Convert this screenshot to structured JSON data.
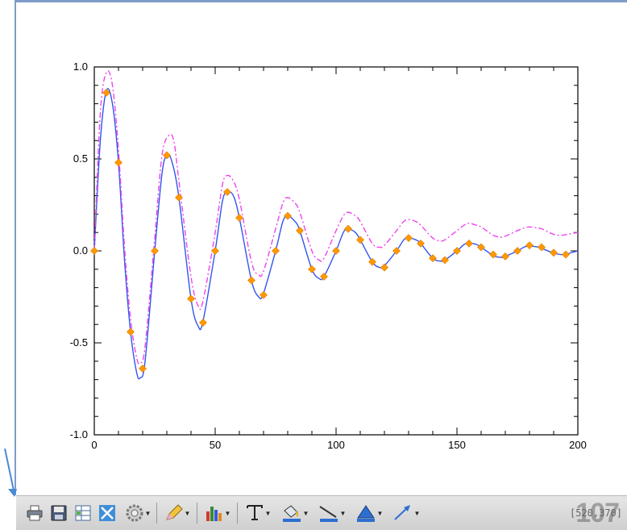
{
  "toolbar": {
    "coords_text": "[520,370]",
    "page_number": "107",
    "buttons": [
      {
        "id": "print",
        "icon": "printer-icon"
      },
      {
        "id": "save",
        "icon": "floppy-disk-icon"
      },
      {
        "id": "data-table",
        "icon": "spreadsheet-icon"
      },
      {
        "id": "fit",
        "icon": "expand-arrows-icon"
      },
      {
        "id": "settings",
        "icon": "gear-icon"
      },
      {
        "id": "edit",
        "icon": "pencil-icon"
      },
      {
        "id": "chart-type",
        "icon": "bar-chart-icon"
      },
      {
        "id": "text",
        "icon": "text-tool-icon"
      },
      {
        "id": "fill",
        "icon": "paint-bucket-icon"
      },
      {
        "id": "line",
        "icon": "line-tool-icon"
      },
      {
        "id": "marker",
        "icon": "triangle-marker-icon"
      },
      {
        "id": "arrow",
        "icon": "arrow-tool-icon"
      }
    ]
  },
  "colors": {
    "blue_line": "#3355ee",
    "magenta_line": "#ee44ee",
    "orange_marker": "#ff9900",
    "window_border": "#7f9cc9",
    "annotation_arrow": "#4a8ad6"
  },
  "chart_data": {
    "type": "line",
    "xlim": [
      0,
      200
    ],
    "ylim": [
      -1.0,
      1.0
    ],
    "x_ticks": [
      "0",
      "50",
      "100",
      "150",
      "200"
    ],
    "y_ticks": [
      "1.0",
      "0.5",
      "0.0",
      "-0.5",
      "-1.0"
    ],
    "title": "",
    "xlabel": "",
    "ylabel": "",
    "grid": false,
    "legend": false,
    "series": [
      {
        "style": "solid",
        "color": "#3355ee",
        "points": [
          [
            0,
            0.0
          ],
          [
            2.5,
            0.6
          ],
          [
            5,
            0.87
          ],
          [
            7.5,
            0.8
          ],
          [
            10,
            0.48
          ],
          [
            12.5,
            -0.05
          ],
          [
            15,
            -0.44
          ],
          [
            17.5,
            -0.66
          ],
          [
            19,
            -0.69
          ],
          [
            21,
            -0.6
          ],
          [
            25,
            0.0
          ],
          [
            28,
            0.42
          ],
          [
            30,
            0.52
          ],
          [
            32,
            0.49
          ],
          [
            35,
            0.29
          ],
          [
            40,
            -0.26
          ],
          [
            43,
            -0.41
          ],
          [
            45,
            -0.38
          ],
          [
            50,
            0.0
          ],
          [
            53,
            0.27
          ],
          [
            55,
            0.32
          ],
          [
            57.5,
            0.3
          ],
          [
            60,
            0.18
          ],
          [
            65,
            -0.16
          ],
          [
            68,
            -0.25
          ],
          [
            70,
            -0.23
          ],
          [
            75,
            0.0
          ],
          [
            78,
            0.16
          ],
          [
            80,
            0.19
          ],
          [
            83,
            0.16
          ],
          [
            85,
            0.11
          ],
          [
            90,
            -0.1
          ],
          [
            93,
            -0.15
          ],
          [
            95,
            -0.14
          ],
          [
            100,
            0.0
          ],
          [
            103,
            0.1
          ],
          [
            105,
            0.12
          ],
          [
            108,
            0.1
          ],
          [
            110,
            0.06
          ],
          [
            115,
            -0.06
          ],
          [
            118,
            -0.09
          ],
          [
            120,
            -0.08
          ],
          [
            125,
            0.0
          ],
          [
            128,
            0.06
          ],
          [
            130,
            0.07
          ],
          [
            133,
            0.06
          ],
          [
            135,
            0.04
          ],
          [
            140,
            -0.04
          ],
          [
            143,
            -0.055
          ],
          [
            145,
            -0.05
          ],
          [
            150,
            0.0
          ],
          [
            153,
            0.035
          ],
          [
            155,
            0.043
          ],
          [
            158,
            0.035
          ],
          [
            160,
            0.02
          ],
          [
            165,
            -0.025
          ],
          [
            168,
            -0.035
          ],
          [
            170,
            -0.03
          ],
          [
            175,
            0.0
          ],
          [
            178,
            0.022
          ],
          [
            180,
            0.026
          ],
          [
            183,
            0.022
          ],
          [
            185,
            0.014
          ],
          [
            190,
            -0.012
          ],
          [
            193,
            -0.02
          ],
          [
            195,
            -0.018
          ],
          [
            200,
            0.0
          ]
        ]
      },
      {
        "style": "dash-dot",
        "color": "#ee44ee",
        "points": [
          [
            0,
            0.0
          ],
          [
            2.5,
            0.75
          ],
          [
            5,
            0.97
          ],
          [
            7.5,
            0.9
          ],
          [
            10,
            0.55
          ],
          [
            12.5,
            0.02
          ],
          [
            15,
            -0.37
          ],
          [
            17.5,
            -0.58
          ],
          [
            19,
            -0.61
          ],
          [
            21,
            -0.52
          ],
          [
            25,
            0.07
          ],
          [
            28,
            0.52
          ],
          [
            31,
            0.63
          ],
          [
            33,
            0.59
          ],
          [
            35,
            0.38
          ],
          [
            40,
            -0.14
          ],
          [
            43,
            -0.3
          ],
          [
            45,
            -0.27
          ],
          [
            50,
            0.1
          ],
          [
            53,
            0.36
          ],
          [
            55,
            0.41
          ],
          [
            57.5,
            0.38
          ],
          [
            60,
            0.28
          ],
          [
            65,
            -0.06
          ],
          [
            68,
            -0.13
          ],
          [
            70,
            -0.11
          ],
          [
            75,
            0.12
          ],
          [
            78,
            0.26
          ],
          [
            80,
            0.29
          ],
          [
            83,
            0.26
          ],
          [
            85,
            0.21
          ],
          [
            90,
            0.0
          ],
          [
            93,
            -0.05
          ],
          [
            95,
            -0.04
          ],
          [
            100,
            0.11
          ],
          [
            103,
            0.19
          ],
          [
            105,
            0.21
          ],
          [
            108,
            0.19
          ],
          [
            110,
            0.16
          ],
          [
            115,
            0.04
          ],
          [
            118,
            0.02
          ],
          [
            120,
            0.03
          ],
          [
            125,
            0.11
          ],
          [
            128,
            0.16
          ],
          [
            130,
            0.17
          ],
          [
            133,
            0.16
          ],
          [
            135,
            0.14
          ],
          [
            140,
            0.07
          ],
          [
            143,
            0.055
          ],
          [
            145,
            0.06
          ],
          [
            150,
            0.11
          ],
          [
            153,
            0.14
          ],
          [
            155,
            0.15
          ],
          [
            158,
            0.14
          ],
          [
            160,
            0.13
          ],
          [
            165,
            0.085
          ],
          [
            168,
            0.075
          ],
          [
            170,
            0.08
          ],
          [
            175,
            0.11
          ],
          [
            178,
            0.125
          ],
          [
            180,
            0.13
          ],
          [
            183,
            0.125
          ],
          [
            185,
            0.12
          ],
          [
            190,
            0.09
          ],
          [
            193,
            0.085
          ],
          [
            195,
            0.088
          ],
          [
            200,
            0.1
          ]
        ]
      },
      {
        "style": "markers",
        "marker": "diamond",
        "color": "#ff9900",
        "points": [
          [
            0,
            0.0
          ],
          [
            5,
            0.86
          ],
          [
            10,
            0.48
          ],
          [
            15,
            -0.44
          ],
          [
            20,
            -0.64
          ],
          [
            25,
            0.0
          ],
          [
            30,
            0.52
          ],
          [
            35,
            0.29
          ],
          [
            40,
            -0.26
          ],
          [
            45,
            -0.39
          ],
          [
            50,
            0.0
          ],
          [
            55,
            0.32
          ],
          [
            60,
            0.18
          ],
          [
            65,
            -0.16
          ],
          [
            70,
            -0.24
          ],
          [
            75,
            0.0
          ],
          [
            80,
            0.19
          ],
          [
            85,
            0.11
          ],
          [
            90,
            -0.1
          ],
          [
            95,
            -0.14
          ],
          [
            100,
            0.0
          ],
          [
            105,
            0.12
          ],
          [
            110,
            0.06
          ],
          [
            115,
            -0.06
          ],
          [
            120,
            -0.09
          ],
          [
            125,
            0.0
          ],
          [
            130,
            0.07
          ],
          [
            135,
            0.04
          ],
          [
            140,
            -0.04
          ],
          [
            145,
            -0.05
          ],
          [
            150,
            0.0
          ],
          [
            155,
            0.04
          ],
          [
            160,
            0.02
          ],
          [
            165,
            -0.02
          ],
          [
            170,
            -0.03
          ],
          [
            175,
            0.0
          ],
          [
            180,
            0.03
          ],
          [
            185,
            0.02
          ],
          [
            190,
            -0.01
          ],
          [
            195,
            -0.02
          ]
        ]
      }
    ]
  }
}
